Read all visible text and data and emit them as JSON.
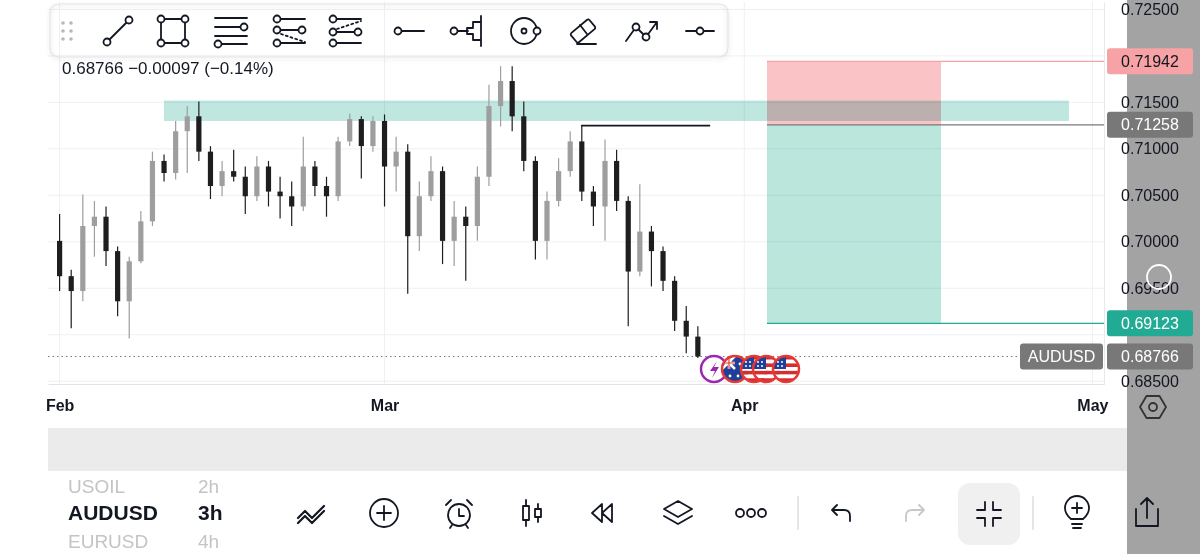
{
  "chart_data": {
    "type": "candlestick",
    "annotations": [
      "0.68766 −0.00097 (−0.14%)",
      "USOIL",
      "2h",
      "AUDUSD",
      "3h",
      "EURUSD",
      "4h"
    ],
    "x": [
      "--02-01",
      "--02-02",
      "--02-03",
      "--02-04",
      "--02-05",
      "--02-06",
      "--02-07",
      "--02-08",
      "--02-09",
      "--02-10",
      "--02-11",
      "--02-12",
      "--02-13",
      "--02-14",
      "--02-15",
      "--02-16",
      "--02-17",
      "--02-18",
      "--02-19",
      "--02-20",
      "--02-21",
      "--02-22",
      "--02-23",
      "--02-24",
      "--02-25",
      "--02-26",
      "--02-27",
      "--02-28",
      "--03-01",
      "--03-02",
      "--03-03",
      "--03-04",
      "--03-05",
      "--03-06",
      "--03-07",
      "--03-08",
      "--03-09",
      "--03-10",
      "--03-11",
      "--03-12",
      "--03-13",
      "--03-14",
      "--03-15",
      "--03-16",
      "--03-17",
      "--03-18",
      "--03-19",
      "--03-20",
      "--03-21",
      "--03-22",
      "--03-23",
      "--03-24",
      "--03-25",
      "--03-26",
      "--03-27",
      "--03-28"
    ],
    "series": [
      {
        "ohlc": [
          [
            0.7001,
            0.703,
            0.6947,
            0.6963
          ],
          [
            0.6963,
            0.697,
            0.6907,
            0.6947
          ],
          [
            0.6947,
            0.7051,
            0.6936,
            0.7017
          ],
          [
            0.7017,
            0.7044,
            0.6984,
            0.7027
          ],
          [
            0.7027,
            0.7038,
            0.6974,
            0.699
          ],
          [
            0.699,
            0.6995,
            0.692,
            0.6936
          ],
          [
            0.6936,
            0.6984,
            0.6896,
            0.6979
          ],
          [
            0.6979,
            0.7033,
            0.6977,
            0.7022
          ],
          [
            0.7022,
            0.7097,
            0.7017,
            0.7087
          ],
          [
            0.7087,
            0.7094,
            0.7065,
            0.7074
          ],
          [
            0.7074,
            0.713,
            0.7067,
            0.7119
          ],
          [
            0.7119,
            0.7146,
            0.7074,
            0.7135
          ],
          [
            0.7135,
            0.7151,
            0.7087,
            0.7097
          ],
          [
            0.7097,
            0.7103,
            0.7046,
            0.706
          ],
          [
            0.706,
            0.7087,
            0.7049,
            0.7076
          ],
          [
            0.7076,
            0.7099,
            0.7065,
            0.707
          ],
          [
            0.707,
            0.7081,
            0.703,
            0.7049
          ],
          [
            0.7049,
            0.7092,
            0.7044,
            0.7081
          ],
          [
            0.7081,
            0.7087,
            0.7038,
            0.7054
          ],
          [
            0.7054,
            0.707,
            0.7025,
            0.7049
          ],
          [
            0.7049,
            0.7065,
            0.7017,
            0.7038
          ],
          [
            0.7038,
            0.7113,
            0.7033,
            0.7081
          ],
          [
            0.7081,
            0.7087,
            0.7049,
            0.706
          ],
          [
            0.706,
            0.707,
            0.7027,
            0.7049
          ],
          [
            0.7049,
            0.7113,
            0.7044,
            0.7108
          ],
          [
            0.7108,
            0.7138,
            0.7103,
            0.7132
          ],
          [
            0.7132,
            0.7135,
            0.7068,
            0.7103
          ],
          [
            0.7103,
            0.7135,
            0.7097,
            0.713
          ],
          [
            0.713,
            0.7137,
            0.7038,
            0.7081
          ],
          [
            0.7081,
            0.7113,
            0.7054,
            0.7097
          ],
          [
            0.7097,
            0.7105,
            0.6944,
            0.7006
          ],
          [
            0.7006,
            0.7065,
            0.699,
            0.7049
          ],
          [
            0.7049,
            0.7092,
            0.7044,
            0.7076
          ],
          [
            0.7076,
            0.7081,
            0.6976,
            0.7001
          ],
          [
            0.7001,
            0.7044,
            0.6974,
            0.7027
          ],
          [
            0.7027,
            0.7038,
            0.6958,
            0.7017
          ],
          [
            0.7017,
            0.7081,
            0.7001,
            0.707
          ],
          [
            0.707,
            0.7169,
            0.706,
            0.7146
          ],
          [
            0.7146,
            0.7189,
            0.7124,
            0.7173
          ],
          [
            0.7173,
            0.7189,
            0.7119,
            0.7135
          ],
          [
            0.7135,
            0.7151,
            0.7076,
            0.7087
          ],
          [
            0.7087,
            0.7092,
            0.6981,
            0.7001
          ],
          [
            0.7001,
            0.7054,
            0.6981,
            0.7044
          ],
          [
            0.7044,
            0.709,
            0.7038,
            0.7076
          ],
          [
            0.7076,
            0.7119,
            0.707,
            0.7108
          ],
          [
            0.7108,
            0.7125,
            0.7044,
            0.7054
          ],
          [
            0.7054,
            0.706,
            0.7017,
            0.7038
          ],
          [
            0.7038,
            0.711,
            0.7001,
            0.7087
          ],
          [
            0.7087,
            0.7099,
            0.7033,
            0.7044
          ],
          [
            0.7044,
            0.7049,
            0.6909,
            0.6968
          ],
          [
            0.6968,
            0.7062,
            0.6963,
            0.7011
          ],
          [
            0.7011,
            0.7017,
            0.6952,
            0.699
          ],
          [
            0.699,
            0.6995,
            0.6947,
            0.6958
          ],
          [
            0.6958,
            0.6963,
            0.6904,
            0.6915
          ],
          [
            0.6915,
            0.6931,
            0.688,
            0.6898
          ],
          [
            0.6898,
            0.6909,
            0.6875,
            0.68766
          ]
        ],
        "colors": [
          "#1e1e1e",
          "#1e1e1e",
          "#9e9e9e",
          "#9e9e9e",
          "#1e1e1e",
          "#1e1e1e",
          "#9e9e9e",
          "#9e9e9e",
          "#9e9e9e",
          "#1e1e1e",
          "#9e9e9e",
          "#9e9e9e",
          "#1e1e1e",
          "#1e1e1e",
          "#9e9e9e",
          "#1e1e1e",
          "#1e1e1e",
          "#9e9e9e",
          "#1e1e1e",
          "#1e1e1e",
          "#1e1e1e",
          "#9e9e9e",
          "#1e1e1e",
          "#1e1e1e",
          "#9e9e9e",
          "#9e9e9e",
          "#1e1e1e",
          "#9e9e9e",
          "#1e1e1e",
          "#9e9e9e",
          "#1e1e1e",
          "#9e9e9e",
          "#9e9e9e",
          "#1e1e1e",
          "#9e9e9e",
          "#1e1e1e",
          "#9e9e9e",
          "#9e9e9e",
          "#9e9e9e",
          "#1e1e1e",
          "#1e1e1e",
          "#1e1e1e",
          "#9e9e9e",
          "#9e9e9e",
          "#9e9e9e",
          "#1e1e1e",
          "#1e1e1e",
          "#9e9e9e",
          "#1e1e1e",
          "#1e1e1e",
          "#9e9e9e",
          "#1e1e1e",
          "#1e1e1e",
          "#1e1e1e",
          "#1e1e1e",
          "#1e1e1e"
        ]
      },
      {
        "type": "line",
        "x": [
          "--03-18",
          "--03-29"
        ],
        "values": [
          0.7125,
          0.7125
        ],
        "color": "#131722"
      }
    ],
    "xlim": [
      "--01-31",
      "--05-02"
    ],
    "xticks": [
      {
        "value": "--02-01",
        "label": "Feb"
      },
      {
        "value": "--03-01",
        "label": "Mar"
      },
      {
        "value": "--04-01",
        "label": "Apr"
      },
      {
        "value": "--05-01",
        "label": "May"
      }
    ],
    "ylim": [
      0.6847,
      0.7258
    ],
    "yticks": [
      {
        "value": 0.685,
        "label": "0.68500"
      },
      {
        "value": 0.69,
        "label": null
      },
      {
        "value": 0.695,
        "label": "0.69500"
      },
      {
        "value": 0.7,
        "label": "0.70000"
      },
      {
        "value": 0.705,
        "label": "0.70500"
      },
      {
        "value": 0.71,
        "label": "0.71000"
      },
      {
        "value": 0.715,
        "label": "0.71500"
      },
      {
        "value": 0.72,
        "label": null
      },
      {
        "value": 0.725,
        "label": "0.72500"
      }
    ],
    "grid": true,
    "bands": [
      {
        "axis": "y",
        "from": 0.713,
        "to": 0.7152,
        "color": "#bfe7e0"
      },
      {
        "axis": "y",
        "from": 0.71258,
        "to": 0.71942,
        "color": "#fac3c5"
      },
      {
        "axis": "y",
        "from": 0.69123,
        "to": 0.71258,
        "color": "#bae6dc"
      }
    ],
    "ref_lines": [
      {
        "axis": "y",
        "value": 0.71942,
        "label": "0.71942",
        "color": "#f7a3a6"
      },
      {
        "axis": "y",
        "value": 0.71258,
        "label": "0.71258",
        "color": "#787878"
      },
      {
        "axis": "y",
        "value": 0.69123,
        "label": "0.69123",
        "color": "#22ab94"
      },
      {
        "axis": "y",
        "value": 0.68766,
        "label": "AUDUSD 0.68766",
        "color": "#787878",
        "line_style": "dotted"
      }
    ]
  }
}
